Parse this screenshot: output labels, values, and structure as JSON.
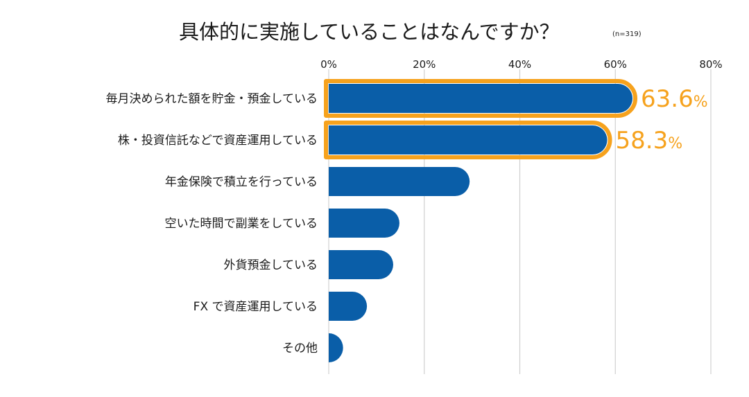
{
  "colors": {
    "bar": "#0a5ea8",
    "highlight": "#f6a21d",
    "grid": "#d0d0d0",
    "text": "#1a1a1a"
  },
  "chart_data": {
    "type": "bar",
    "orientation": "horizontal",
    "title": "具体的に実施していることはなんですか？",
    "note": "(n=319)",
    "xlim": [
      0,
      80
    ],
    "ticks": [
      0,
      20,
      40,
      60,
      80
    ],
    "tick_labels": [
      "0%",
      "20%",
      "40%",
      "60%",
      "80%"
    ],
    "grid": true,
    "categories": [
      "毎月決められた額を貯金・預金している",
      "株・投資信託などで資産運用している",
      "年金保険で積立を行っている",
      "空いた時間で副業をしている",
      "外貨預金している",
      "FX で資産運用している",
      "その他"
    ],
    "values": [
      63.6,
      58.3,
      29.5,
      14.8,
      13.5,
      8.0,
      3.0
    ],
    "highlighted": [
      true,
      true,
      false,
      false,
      false,
      false,
      false
    ],
    "value_labels": [
      {
        "number": "63.6",
        "unit": "%"
      },
      {
        "number": "58.3",
        "unit": "%"
      }
    ]
  }
}
